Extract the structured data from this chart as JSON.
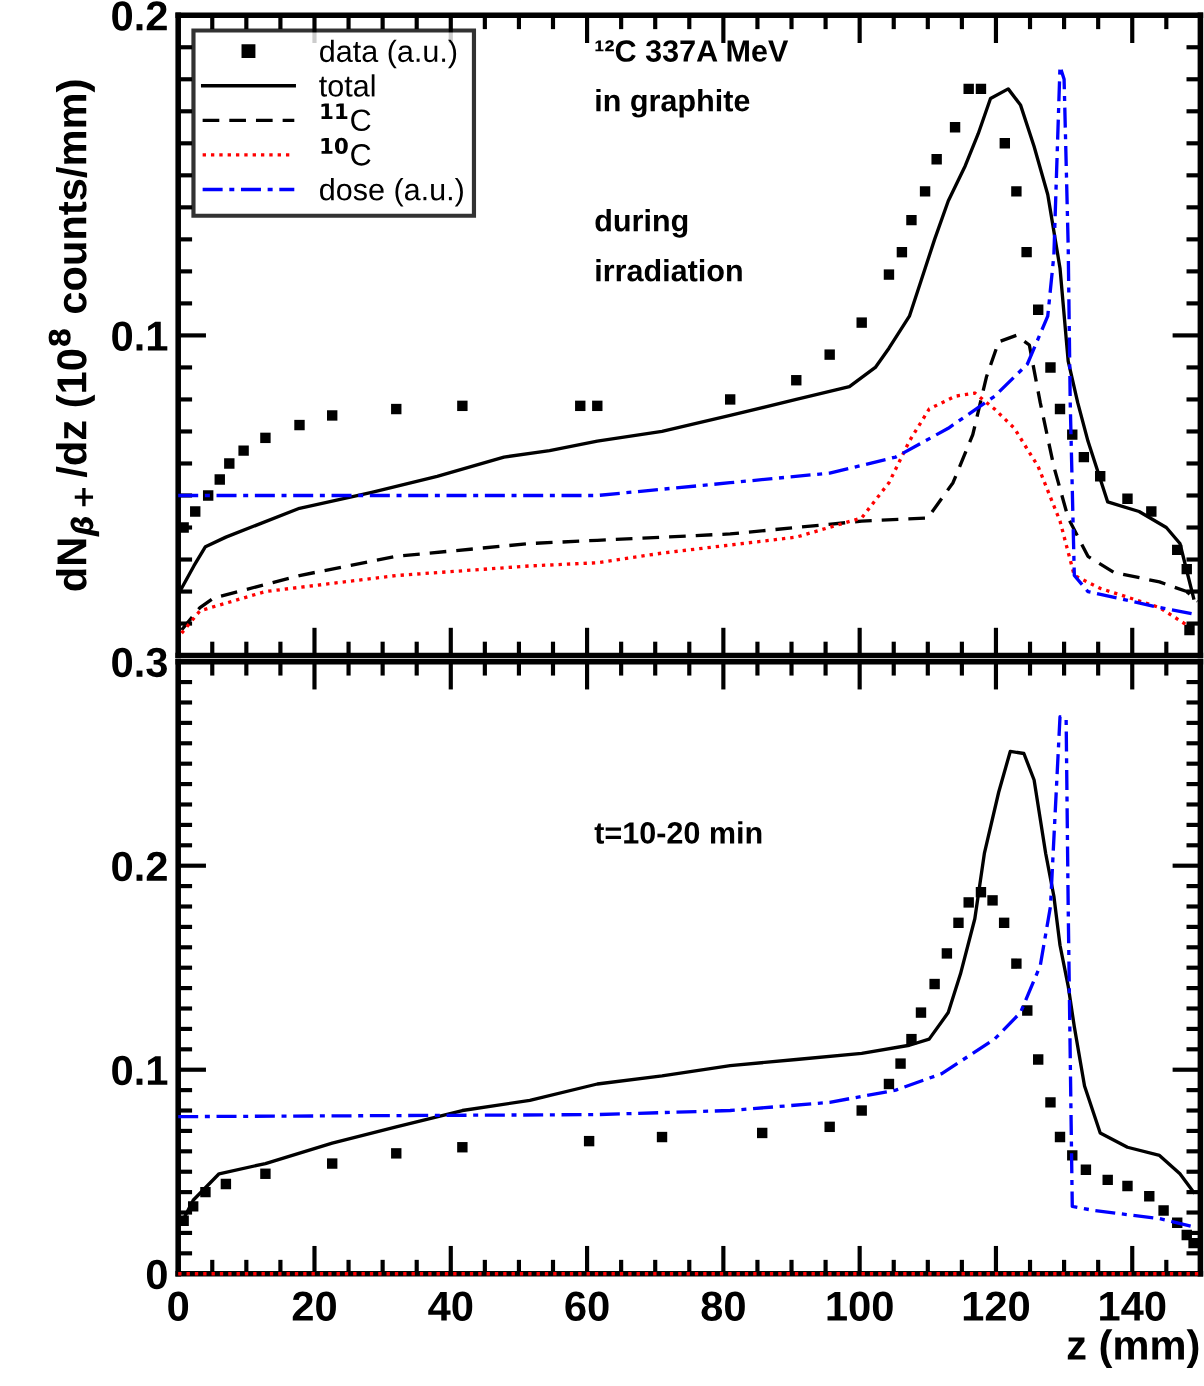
{
  "chart_data": [
    {
      "type": "line",
      "ylabel": "dN$_{β+}$/dz (10$^{8}$ counts/mm)",
      "xlim": [
        0,
        150
      ],
      "ylim": [
        0,
        0.2
      ],
      "xticks": [
        0,
        20,
        40,
        60,
        80,
        100,
        120,
        140
      ],
      "yticks": [
        {
          "value": 0,
          "label": null
        },
        0.1,
        0.2
      ],
      "tick_labels": "y",
      "legend": "top left",
      "annotations": [
        "¹²C 337A MeV",
        "in graphite",
        "during",
        "irradiation"
      ],
      "series": [
        {
          "name": "data (a.u.)",
          "type": "scatter",
          "marker": "square",
          "color": "#000000",
          "x": [
            0.8,
            2.5,
            4.4,
            6.1,
            7.5,
            9.6,
            12.8,
            17.8,
            22.6,
            32,
            41.7,
            59,
            61.5,
            81,
            90.7,
            95.6,
            100.3,
            104.3,
            106.2,
            107.6,
            109.6,
            111.3,
            114,
            116,
            117.8,
            121.3,
            123,
            124.5,
            126.2,
            128,
            129.4,
            131.2,
            132.9,
            135.3,
            139.3,
            142.8,
            146.6,
            148,
            148.4
          ],
          "values": [
            0.04,
            0.045,
            0.05,
            0.055,
            0.06,
            0.064,
            0.068,
            0.072,
            0.075,
            0.077,
            0.078,
            0.078,
            0.078,
            0.08,
            0.086,
            0.094,
            0.104,
            0.119,
            0.126,
            0.136,
            0.145,
            0.155,
            0.165,
            0.177,
            0.177,
            0.16,
            0.145,
            0.126,
            0.108,
            0.09,
            0.077,
            0.069,
            0.062,
            0.056,
            0.049,
            0.045,
            0.033,
            0.027,
            0.008
          ]
        },
        {
          "name": "total",
          "line_style": "solid",
          "color": "#000000",
          "x": [
            0.5,
            2.3,
            4,
            7,
            17.8,
            28.4,
            38,
            47.8,
            54.5,
            61.5,
            71,
            81,
            90.7,
            98.5,
            102.3,
            104.3,
            107.3,
            109,
            111,
            113,
            115.5,
            117.4,
            119.2,
            121.8,
            123.6,
            125.6,
            127.6,
            129.4,
            130.6,
            132,
            133.5,
            136.4,
            141,
            145,
            147,
            149
          ],
          "values": [
            0.021,
            0.028,
            0.034,
            0.037,
            0.046,
            0.051,
            0.056,
            0.062,
            0.064,
            0.067,
            0.07,
            0.075,
            0.08,
            0.084,
            0.09,
            0.096,
            0.106,
            0.117,
            0.13,
            0.142,
            0.153,
            0.163,
            0.174,
            0.177,
            0.172,
            0.159,
            0.144,
            0.121,
            0.092,
            0.079,
            0.067,
            0.048,
            0.045,
            0.04,
            0.035,
            0.018
          ]
        },
        {
          "name": "$^{11}$C",
          "line_style": "dashed",
          "color": "#000000",
          "x": [
            0.5,
            3.2,
            5.2,
            17.8,
            32,
            51.6,
            61.5,
            81,
            100.3,
            110,
            113.7,
            116.6,
            118.6,
            120.4,
            123,
            124.9,
            126.5,
            128.5,
            130.6,
            133.5,
            137.3,
            144,
            148,
            149.6
          ],
          "values": [
            0.008,
            0.015,
            0.018,
            0.025,
            0.031,
            0.035,
            0.036,
            0.038,
            0.042,
            0.043,
            0.054,
            0.069,
            0.087,
            0.098,
            0.1,
            0.097,
            0.079,
            0.059,
            0.043,
            0.031,
            0.026,
            0.023,
            0.02,
            0.017
          ]
        },
        {
          "name": "$^{10}$C",
          "line_style": "dotted",
          "color": "#ff0000",
          "x": [
            0.5,
            3.2,
            12.8,
            32,
            51.6,
            61.5,
            71,
            90.7,
            100.3,
            104.3,
            107.3,
            110.2,
            114,
            116.9,
            119.8,
            122.7,
            126.2,
            129.4,
            131.5,
            135.3,
            144,
            148.4
          ],
          "values": [
            0.007,
            0.014,
            0.02,
            0.025,
            0.028,
            0.029,
            0.032,
            0.037,
            0.043,
            0.054,
            0.067,
            0.077,
            0.081,
            0.082,
            0.077,
            0.071,
            0.059,
            0.042,
            0.025,
            0.021,
            0.015,
            0.009
          ]
        },
        {
          "name": "dose (a.u.)",
          "line_style": "dashdot",
          "color": "#0000ff",
          "x": [
            0,
            61.5,
            81,
            95.6,
            105.3,
            113,
            119.8,
            124.6,
            127.6,
            128.5,
            129.4,
            130,
            130.6,
            130.9,
            131.5,
            133.5,
            144,
            149
          ],
          "values": [
            0.05,
            0.05,
            0.054,
            0.057,
            0.062,
            0.071,
            0.081,
            0.091,
            0.106,
            0.125,
            0.184,
            0.18,
            0.128,
            0.079,
            0.025,
            0.02,
            0.015,
            0.013
          ]
        }
      ]
    },
    {
      "type": "line",
      "xlabel": "z (mm)",
      "xlim": [
        0,
        150
      ],
      "ylim": [
        0,
        0.3
      ],
      "xticks": [
        0,
        20,
        40,
        60,
        80,
        100,
        120,
        140
      ],
      "yticks": [
        0,
        0.1,
        0.2,
        0.3
      ],
      "annotations": [
        "t=10-20 min"
      ],
      "series": [
        {
          "type": "scatter",
          "marker": "square",
          "color": "#000000",
          "x": [
            0.8,
            2.2,
            4,
            7,
            12.8,
            22.6,
            32,
            41.7,
            60.3,
            71,
            85.7,
            95.6,
            100.3,
            104.3,
            106,
            107.6,
            109,
            111,
            112.8,
            114.5,
            116,
            117.8,
            119.5,
            121.2,
            123,
            124.6,
            126.2,
            128,
            129.4,
            131.2,
            133.2,
            136.4,
            139.3,
            142.5,
            144.6,
            146.6,
            148,
            149
          ],
          "values": [
            0.026,
            0.033,
            0.04,
            0.044,
            0.049,
            0.054,
            0.059,
            0.062,
            0.065,
            0.067,
            0.069,
            0.072,
            0.08,
            0.093,
            0.103,
            0.115,
            0.128,
            0.142,
            0.157,
            0.172,
            0.182,
            0.187,
            0.183,
            0.172,
            0.152,
            0.129,
            0.105,
            0.084,
            0.067,
            0.058,
            0.051,
            0.046,
            0.043,
            0.038,
            0.031,
            0.025,
            0.019,
            0.015
          ]
        },
        {
          "line_style": "solid",
          "color": "#000000",
          "x": [
            0.5,
            2.2,
            6,
            12.8,
            22.6,
            32,
            41.7,
            51.6,
            61.5,
            71,
            81,
            90.7,
            100.3,
            107.3,
            110.2,
            113,
            114.8,
            116.9,
            118.3,
            120.4,
            122.1,
            124.1,
            125.6,
            127.3,
            128.5,
            129.4,
            130.6,
            131.5,
            133,
            135.3,
            139.3,
            144,
            147,
            149
          ],
          "values": [
            0.025,
            0.036,
            0.049,
            0.054,
            0.064,
            0.072,
            0.08,
            0.085,
            0.093,
            0.097,
            0.102,
            0.105,
            0.108,
            0.112,
            0.115,
            0.128,
            0.147,
            0.174,
            0.206,
            0.236,
            0.256,
            0.255,
            0.242,
            0.206,
            0.185,
            0.161,
            0.141,
            0.121,
            0.092,
            0.069,
            0.062,
            0.058,
            0.049,
            0.04
          ]
        },
        {
          "line_style": "dotted",
          "color": "#ff0000",
          "x": [
            0,
            150
          ],
          "values": [
            0,
            0
          ]
        },
        {
          "line_style": "dashdot",
          "color": "#0000ff",
          "x": [
            0,
            61.5,
            81,
            95.6,
            105.3,
            112,
            119.8,
            123.6,
            126.5,
            128,
            129.4,
            130.3,
            130.6,
            131.2,
            134.4,
            144,
            149
          ],
          "values": [
            0.077,
            0.078,
            0.08,
            0.084,
            0.09,
            0.098,
            0.115,
            0.128,
            0.151,
            0.18,
            0.273,
            0.272,
            0.18,
            0.033,
            0.031,
            0.027,
            0.023
          ]
        }
      ]
    }
  ]
}
